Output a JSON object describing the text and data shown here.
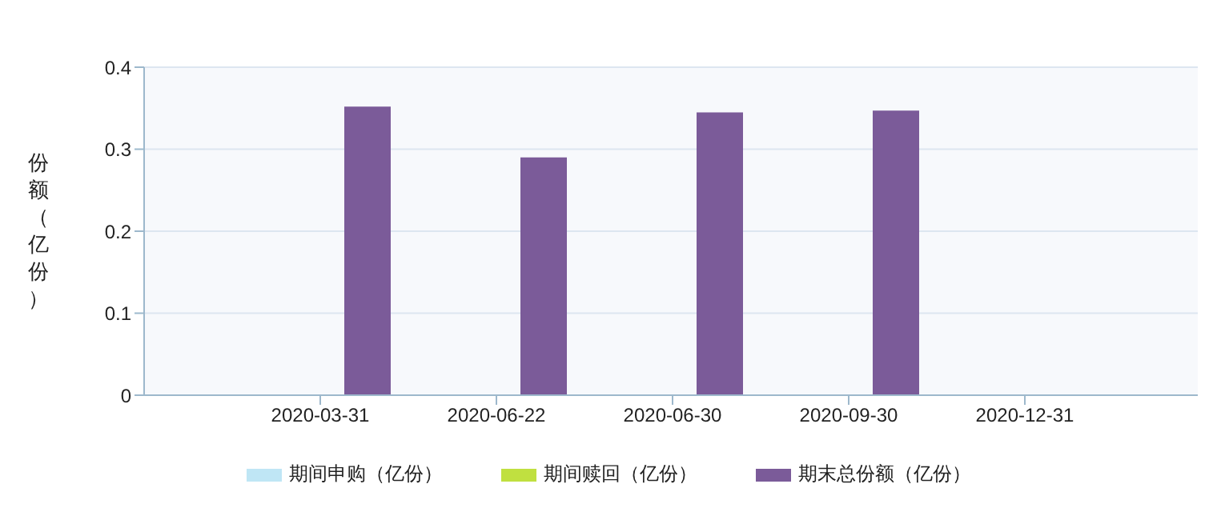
{
  "chart_data": {
    "type": "bar",
    "ylabel": "份额（亿份）",
    "categories": [
      "2020-03-31",
      "2020-06-22",
      "2020-06-30",
      "2020-09-30",
      "2020-12-31"
    ],
    "series": [
      {
        "name": "期间申购（亿份）",
        "color": "#bfe6f5",
        "values": [
          null,
          null,
          null,
          null,
          null
        ]
      },
      {
        "name": "期间赎回（亿份）",
        "color": "#c0e040",
        "values": [
          null,
          null,
          null,
          null,
          null
        ]
      },
      {
        "name": "期末总份额（亿份）",
        "color": "#7b5b99",
        "values": [
          0.352,
          0.29,
          0.345,
          0.347,
          null
        ]
      }
    ],
    "ylim": [
      0,
      0.4
    ],
    "yticks": [
      0,
      0.1,
      0.2,
      0.3,
      0.4
    ],
    "grid": "y",
    "legend": "bottom"
  }
}
